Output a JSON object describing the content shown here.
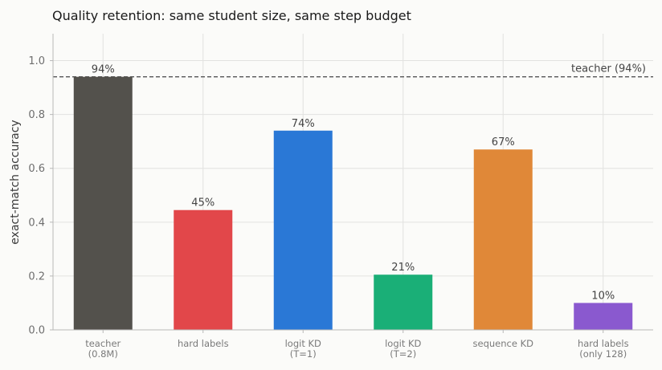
{
  "chart_data": {
    "type": "bar",
    "title": "Quality retention: same student size, same step budget",
    "ylabel": "exact-match accuracy",
    "xlabel": "",
    "ylim": [
      0,
      1.1
    ],
    "yticks": [
      "0.0",
      "0.2",
      "0.4",
      "0.6",
      "0.8",
      "1.0"
    ],
    "grid": true,
    "categories": [
      [
        "teacher",
        "(0.8M)"
      ],
      [
        "hard labels"
      ],
      [
        "logit KD",
        "(T=1)"
      ],
      [
        "logit KD",
        "(T=2)"
      ],
      [
        "sequence KD"
      ],
      [
        "hard labels",
        "(only 128)"
      ]
    ],
    "values": [
      0.94,
      0.445,
      0.74,
      0.205,
      0.67,
      0.1
    ],
    "data_labels": [
      "94%",
      "45%",
      "74%",
      "21%",
      "67%",
      "10%"
    ],
    "colors": [
      "#53514c",
      "#e2474a",
      "#2a78d6",
      "#1aaf77",
      "#e08838",
      "#8a59cf"
    ],
    "reference_line": {
      "value": 0.94,
      "label": "teacher (94%)",
      "style": "dashed",
      "color": "#555555"
    }
  }
}
